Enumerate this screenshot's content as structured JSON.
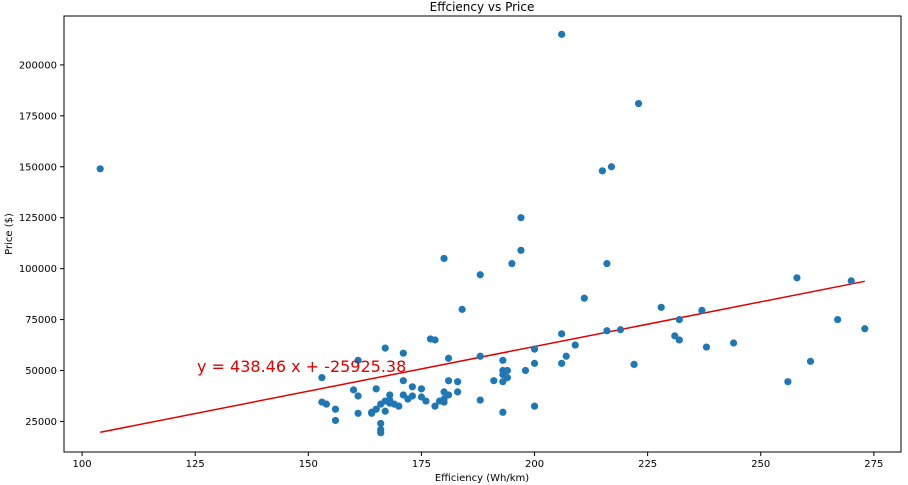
{
  "chart_data": {
    "type": "scatter",
    "title": "Effciency vs Price",
    "xlabel": "Efficiency (Wh/km)",
    "ylabel": "Price ($)",
    "xlim": [
      96,
      281
    ],
    "ylim": [
      10000,
      224000
    ],
    "xticks": [
      100,
      125,
      150,
      175,
      200,
      225,
      250,
      275
    ],
    "yticks": [
      25000,
      50000,
      75000,
      100000,
      125000,
      150000,
      175000,
      200000
    ],
    "grid": false,
    "colors": {
      "points": "#1f77b4",
      "fit": "#e00000",
      "annotation": "#e00000"
    },
    "annotation": "y = 438.46 x + -25925.38",
    "fit_line": {
      "slope": 438.46,
      "intercept": -25925.38,
      "x_range": [
        104,
        273
      ]
    },
    "points": [
      [
        104,
        149000
      ],
      [
        153,
        46500
      ],
      [
        153,
        34500
      ],
      [
        154,
        33500
      ],
      [
        156,
        31000
      ],
      [
        156,
        25500
      ],
      [
        160,
        40500
      ],
      [
        161,
        55000
      ],
      [
        161,
        37500
      ],
      [
        161,
        29000
      ],
      [
        164,
        29000
      ],
      [
        164,
        29500
      ],
      [
        165,
        41000
      ],
      [
        165,
        31000
      ],
      [
        166,
        33500
      ],
      [
        166,
        24000
      ],
      [
        166,
        21000
      ],
      [
        166,
        19500
      ],
      [
        167,
        61000
      ],
      [
        167,
        35000
      ],
      [
        167,
        30000
      ],
      [
        168,
        34000
      ],
      [
        168,
        35500
      ],
      [
        168,
        38000
      ],
      [
        169,
        33500
      ],
      [
        170,
        32500
      ],
      [
        171,
        58500
      ],
      [
        171,
        45000
      ],
      [
        171,
        38000
      ],
      [
        172,
        36000
      ],
      [
        173,
        42000
      ],
      [
        173,
        37500
      ],
      [
        175,
        41000
      ],
      [
        175,
        37000
      ],
      [
        176,
        35000
      ],
      [
        177,
        65500
      ],
      [
        178,
        65000
      ],
      [
        178,
        32500
      ],
      [
        179,
        35000
      ],
      [
        180,
        105000
      ],
      [
        180,
        39500
      ],
      [
        180,
        36000
      ],
      [
        180,
        34500
      ],
      [
        181,
        56000
      ],
      [
        181,
        45000
      ],
      [
        181,
        38000
      ],
      [
        183,
        39500
      ],
      [
        183,
        44500
      ],
      [
        184,
        80000
      ],
      [
        188,
        97000
      ],
      [
        188,
        57000
      ],
      [
        188,
        35500
      ],
      [
        191,
        45000
      ],
      [
        193,
        55000
      ],
      [
        193,
        50000
      ],
      [
        193,
        48000
      ],
      [
        193,
        44500
      ],
      [
        193,
        29500
      ],
      [
        194,
        50000
      ],
      [
        194,
        46500
      ],
      [
        195,
        102500
      ],
      [
        197,
        125000
      ],
      [
        197,
        109000
      ],
      [
        198,
        50000
      ],
      [
        200,
        60500
      ],
      [
        200,
        53500
      ],
      [
        200,
        32500
      ],
      [
        206,
        215000
      ],
      [
        206,
        68000
      ],
      [
        206,
        53500
      ],
      [
        207,
        57000
      ],
      [
        209,
        62500
      ],
      [
        211,
        85500
      ],
      [
        215,
        148000
      ],
      [
        216,
        102500
      ],
      [
        216,
        69500
      ],
      [
        217,
        150000
      ],
      [
        219,
        70000
      ],
      [
        222,
        53000
      ],
      [
        223,
        181000
      ],
      [
        228,
        81000
      ],
      [
        231,
        67000
      ],
      [
        232,
        75000
      ],
      [
        232,
        65000
      ],
      [
        237,
        79500
      ],
      [
        238,
        61500
      ],
      [
        244,
        63500
      ],
      [
        256,
        44500
      ],
      [
        258,
        95500
      ],
      [
        261,
        54500
      ],
      [
        267,
        75000
      ],
      [
        270,
        94000
      ],
      [
        273,
        70500
      ]
    ]
  }
}
